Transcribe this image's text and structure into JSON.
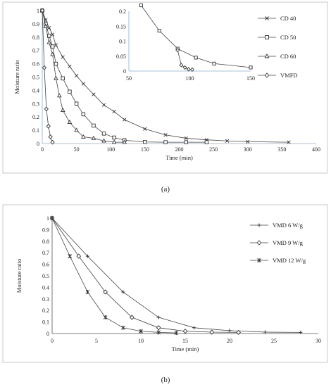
{
  "figure": {
    "panel_a_label": "(a)",
    "panel_b_label": "(b)"
  },
  "chart_data": [
    {
      "type": "line",
      "panel": "a",
      "xlabel": "Time (min)",
      "ylabel": "Moisture ratio",
      "xlim": [
        0,
        400
      ],
      "ylim": [
        0,
        1
      ],
      "xticks": [
        0,
        50,
        100,
        150,
        200,
        250,
        300,
        350,
        400
      ],
      "yticks": [
        0,
        0.1,
        0.2,
        0.3,
        0.4,
        0.5,
        0.6,
        0.7,
        0.8,
        0.9,
        1
      ],
      "grid": false,
      "legend_position": "right",
      "series": [
        {
          "name": "CD 40",
          "marker": "x",
          "x": [
            0,
            5,
            10,
            15,
            20,
            30,
            40,
            50,
            60,
            75,
            90,
            105,
            120,
            150,
            180,
            210,
            240,
            270,
            300,
            360
          ],
          "y": [
            1,
            0.93,
            0.87,
            0.82,
            0.74,
            0.65,
            0.58,
            0.51,
            0.45,
            0.37,
            0.29,
            0.24,
            0.18,
            0.11,
            0.065,
            0.04,
            0.028,
            0.02,
            0.014,
            0.01
          ]
        },
        {
          "name": "CD 50",
          "marker": "square",
          "x": [
            0,
            5,
            10,
            15,
            20,
            30,
            40,
            50,
            60,
            75,
            90,
            105,
            120,
            150,
            180,
            210,
            240
          ],
          "y": [
            1,
            0.9,
            0.81,
            0.73,
            0.6,
            0.49,
            0.39,
            0.3,
            0.22,
            0.135,
            0.075,
            0.045,
            0.025,
            0.012,
            0.01,
            0.01,
            0.01
          ]
        },
        {
          "name": "CD 60",
          "marker": "triangle",
          "x": [
            0,
            5,
            10,
            15,
            20,
            25,
            30,
            40,
            50,
            60,
            75,
            90,
            105,
            120
          ],
          "y": [
            1,
            0.88,
            0.76,
            0.67,
            0.49,
            0.36,
            0.25,
            0.16,
            0.1,
            0.05,
            0.04,
            0.02,
            0.01,
            0.01
          ]
        },
        {
          "name": "VMFD",
          "marker": "diamond",
          "x": [
            0,
            3,
            6,
            9,
            12,
            15
          ],
          "y": [
            1,
            0.57,
            0.26,
            0.13,
            0.05,
            0.01
          ]
        }
      ],
      "inset": {
        "xlim": [
          50,
          150
        ],
        "ylim": [
          0,
          0.2
        ],
        "xticks": [
          50,
          100,
          150
        ],
        "yticks": [
          0,
          0.05,
          0.1,
          0.15,
          0.2
        ],
        "series": [
          {
            "name": "CD 50",
            "marker": "square",
            "x": [
              60,
              75,
              90,
              105,
              120,
              150
            ],
            "y": [
              0.22,
              0.135,
              0.075,
              0.045,
              0.025,
              0.012
            ]
          },
          {
            "name": "VMFD",
            "marker": "diamond",
            "x": [
              90,
              93,
              96,
              99,
              102
            ],
            "y": [
              0.07,
              0.02,
              0.012,
              0.006,
              0.005
            ]
          }
        ]
      }
    },
    {
      "type": "line",
      "panel": "b",
      "xlabel": "Time (min)",
      "ylabel": "Moisture ratio",
      "xlim": [
        0,
        30
      ],
      "ylim": [
        0,
        1
      ],
      "xticks": [
        0,
        5,
        10,
        15,
        20,
        25,
        30
      ],
      "yticks": [
        0,
        0.1,
        0.2,
        0.3,
        0.4,
        0.5,
        0.6,
        0.7,
        0.8,
        0.9,
        1
      ],
      "grid": false,
      "legend_position": "right",
      "series": [
        {
          "name": "VMD 6 W/g",
          "marker": "plus",
          "x": [
            0,
            4,
            8,
            12,
            16,
            20,
            24,
            28
          ],
          "y": [
            1,
            0.67,
            0.36,
            0.14,
            0.05,
            0.025,
            0.012,
            0.01
          ]
        },
        {
          "name": "VMD 9 W/g",
          "marker": "diamond",
          "x": [
            0,
            3,
            6,
            9,
            12,
            15,
            18,
            21
          ],
          "y": [
            1,
            0.67,
            0.36,
            0.14,
            0.05,
            0.02,
            0.012,
            0.01
          ]
        },
        {
          "name": "VMD 12 W/g",
          "marker": "star",
          "x": [
            0,
            2,
            4,
            6,
            8,
            10,
            12,
            14
          ],
          "y": [
            1,
            0.67,
            0.36,
            0.14,
            0.05,
            0.02,
            0.01,
            0.005
          ]
        }
      ]
    }
  ]
}
